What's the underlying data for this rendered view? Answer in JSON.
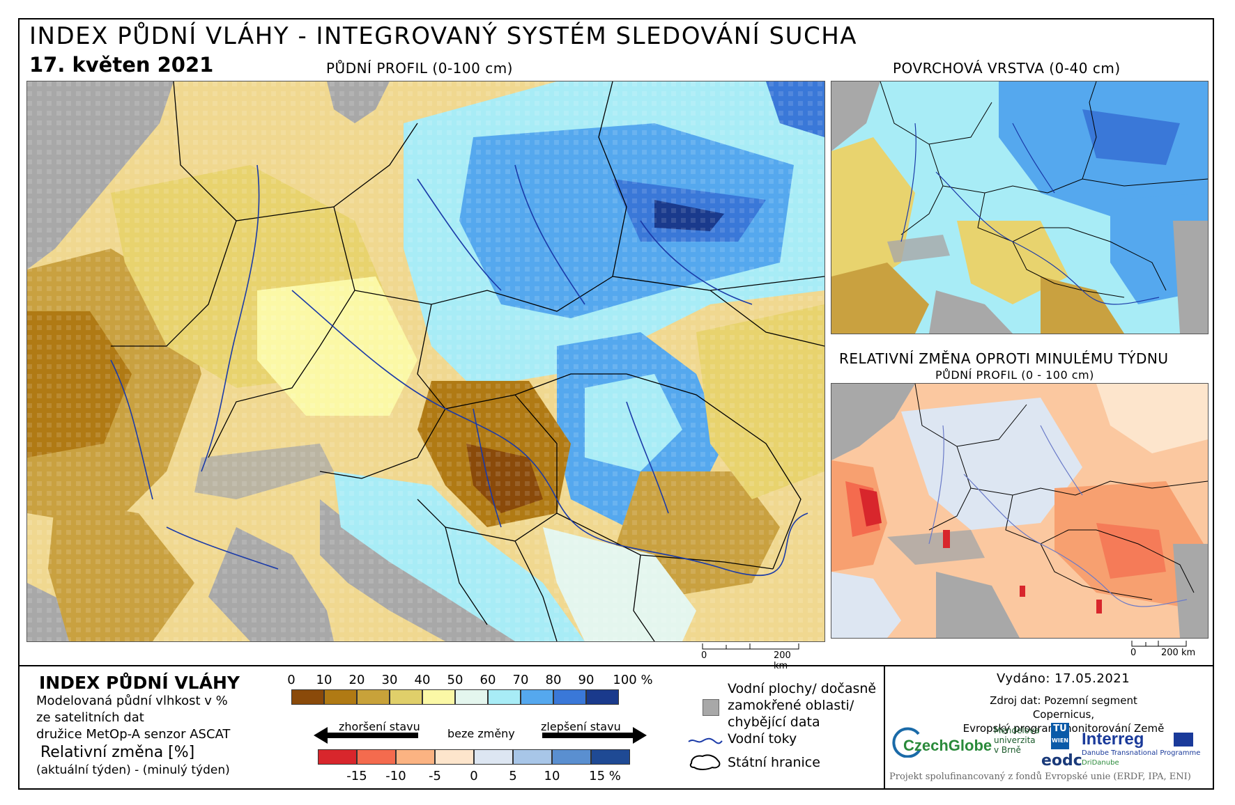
{
  "header": {
    "title": "INDEX PŮDNÍ VLÁHY - INTEGROVANÝ SYSTÉM SLEDOVÁNÍ SUCHA",
    "date": "17. květen 2021"
  },
  "maps": {
    "main_title": "PŮDNÍ PROFIL (0-100 cm)",
    "surface_title": "POVRCHOVÁ VRSTVA (0-40 cm)",
    "change_title": "RELATIVNÍ ZMĚNA OPROTI MINULÉMU TÝDNU",
    "change_subtitle": "PŮDNÍ PROFIL (0 - 100 cm)",
    "scale_zero": "0",
    "scale_km": "200 km"
  },
  "legend": {
    "title": "INDEX PŮDNÍ VLÁHY",
    "line1": "Modelovaná půdní vlhkost v %",
    "line2": "ze satelitních dat",
    "line3": "družice MetOp-A senzor ASCAT",
    "rel_title": "Relativní změna [%]",
    "rel_sub": "(aktuální týden) - (minulý týden)",
    "moisture_ticks": [
      "0",
      "10",
      "20",
      "30",
      "40",
      "50",
      "60",
      "70",
      "80",
      "90",
      "100 %"
    ],
    "moisture_colors": [
      "#8a4a0a",
      "#b07a14",
      "#c8a23a",
      "#e0cf6a",
      "#fbf8a6",
      "#e4f6ee",
      "#a8ecf6",
      "#55a8ee",
      "#3a78d8",
      "#1a3a8c"
    ],
    "change_ticks": [
      "-15",
      "-10",
      "-5",
      "0",
      "5",
      "10",
      "15 %"
    ],
    "change_colors": [
      "#d8262c",
      "#f46b4e",
      "#fbb382",
      "#fde5cc",
      "#dde6f2",
      "#a8c6e8",
      "#5a8fd0",
      "#1f4a94"
    ],
    "worse_label": "zhoršení stavu",
    "nochange_label": "beze změny",
    "better_label": "zlepšení stavu",
    "water_label_1": "Vodní plochy/ dočasně",
    "water_label_2": "zamokřené oblasti/",
    "water_label_3": "chybějící data",
    "rivers_label": "Vodní toky",
    "borders_label": "Státní hranice"
  },
  "info": {
    "issued": "Vydáno: 17.05.2021",
    "source_1": "Zdroj dat: Pozemní segment Copernicus,",
    "source_2": "Evropský program monitorování Země",
    "footer": "Projekt spolufinancovaný z fondů Evropské unie (ERDF, IPA, ENI)"
  },
  "logos": {
    "czechglobe": "CzechGlobe",
    "mendel_1": "Mendelova",
    "mendel_2": "univerzita",
    "mendel_3": "v Brně",
    "tu_1": "TU",
    "tu_2": "WIEN",
    "eodc": "eodc",
    "interreg": "Interreg",
    "interreg_sub": "Danube Transnational Programme",
    "dridanube": "DriDanube"
  }
}
